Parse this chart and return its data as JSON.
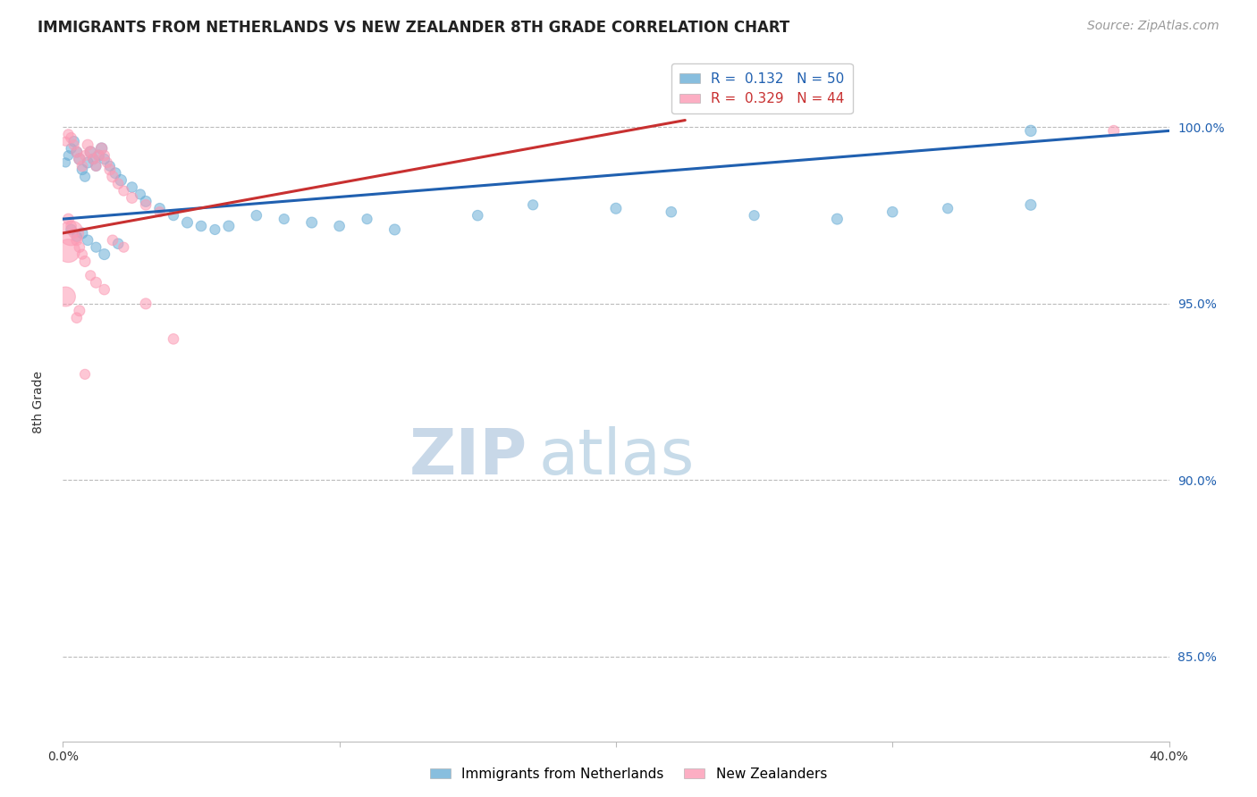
{
  "title": "IMMIGRANTS FROM NETHERLANDS VS NEW ZEALANDER 8TH GRADE CORRELATION CHART",
  "source": "Source: ZipAtlas.com",
  "ylabel": "8th Grade",
  "ytick_labels": [
    "85.0%",
    "90.0%",
    "95.0%",
    "100.0%"
  ],
  "ytick_values": [
    0.85,
    0.9,
    0.95,
    1.0
  ],
  "x_min": 0.0,
  "x_max": 0.4,
  "y_min": 0.826,
  "y_max": 1.018,
  "legend_blue_label": "R =  0.132   N = 50",
  "legend_pink_label": "R =  0.329   N = 44",
  "blue_color": "#6baed6",
  "pink_color": "#fc9ab4",
  "trend_blue_color": "#2060b0",
  "trend_pink_color": "#c83030",
  "watermark_zip": "ZIP",
  "watermark_atlas": "atlas",
  "blue_scatter_x": [
    0.001,
    0.002,
    0.003,
    0.004,
    0.005,
    0.006,
    0.007,
    0.008,
    0.009,
    0.01,
    0.011,
    0.012,
    0.013,
    0.014,
    0.015,
    0.017,
    0.019,
    0.021,
    0.025,
    0.028,
    0.03,
    0.035,
    0.04,
    0.045,
    0.05,
    0.055,
    0.06,
    0.07,
    0.08,
    0.09,
    0.1,
    0.11,
    0.12,
    0.15,
    0.17,
    0.2,
    0.22,
    0.25,
    0.28,
    0.3,
    0.32,
    0.35,
    0.003,
    0.005,
    0.007,
    0.009,
    0.012,
    0.015,
    0.02,
    0.35
  ],
  "blue_scatter_y": [
    0.99,
    0.992,
    0.994,
    0.996,
    0.993,
    0.991,
    0.988,
    0.986,
    0.99,
    0.993,
    0.991,
    0.989,
    0.992,
    0.994,
    0.991,
    0.989,
    0.987,
    0.985,
    0.983,
    0.981,
    0.979,
    0.977,
    0.975,
    0.973,
    0.972,
    0.971,
    0.972,
    0.975,
    0.974,
    0.973,
    0.972,
    0.974,
    0.971,
    0.975,
    0.978,
    0.977,
    0.976,
    0.975,
    0.974,
    0.976,
    0.977,
    0.978,
    0.971,
    0.969,
    0.97,
    0.968,
    0.966,
    0.964,
    0.967,
    0.999
  ],
  "blue_scatter_size": [
    55,
    60,
    65,
    70,
    75,
    80,
    70,
    65,
    75,
    80,
    70,
    65,
    75,
    80,
    70,
    65,
    75,
    80,
    70,
    65,
    75,
    70,
    65,
    75,
    70,
    65,
    75,
    70,
    65,
    75,
    70,
    65,
    75,
    70,
    65,
    75,
    70,
    65,
    75,
    70,
    65,
    75,
    70,
    65,
    75,
    70,
    65,
    75,
    70,
    80
  ],
  "pink_scatter_x": [
    0.001,
    0.002,
    0.003,
    0.004,
    0.005,
    0.006,
    0.007,
    0.008,
    0.009,
    0.01,
    0.011,
    0.012,
    0.013,
    0.014,
    0.015,
    0.016,
    0.017,
    0.018,
    0.02,
    0.022,
    0.025,
    0.03,
    0.035,
    0.002,
    0.003,
    0.004,
    0.005,
    0.006,
    0.007,
    0.008,
    0.001,
    0.002,
    0.003,
    0.018,
    0.022,
    0.03,
    0.04,
    0.01,
    0.012,
    0.015,
    0.008,
    0.006,
    0.005,
    0.38
  ],
  "pink_scatter_y": [
    0.996,
    0.998,
    0.997,
    0.995,
    0.993,
    0.991,
    0.989,
    0.992,
    0.995,
    0.993,
    0.991,
    0.989,
    0.992,
    0.994,
    0.992,
    0.99,
    0.988,
    0.986,
    0.984,
    0.982,
    0.98,
    0.978,
    0.976,
    0.974,
    0.972,
    0.97,
    0.968,
    0.966,
    0.964,
    0.962,
    0.952,
    0.965,
    0.97,
    0.968,
    0.966,
    0.95,
    0.94,
    0.958,
    0.956,
    0.954,
    0.93,
    0.948,
    0.946,
    0.999
  ],
  "pink_scatter_size": [
    55,
    65,
    70,
    65,
    75,
    80,
    70,
    65,
    75,
    80,
    70,
    65,
    75,
    80,
    70,
    65,
    75,
    80,
    70,
    65,
    75,
    70,
    65,
    75,
    70,
    65,
    75,
    70,
    65,
    75,
    250,
    350,
    400,
    70,
    65,
    75,
    70,
    65,
    75,
    70,
    65,
    75,
    70,
    75
  ],
  "blue_trend_x": [
    0.0,
    0.4
  ],
  "blue_trend_y": [
    0.974,
    0.999
  ],
  "pink_trend_x": [
    0.0,
    0.225
  ],
  "pink_trend_y": [
    0.97,
    1.002
  ],
  "grid_color": "#bbbbbb",
  "grid_style": "--",
  "background_color": "#ffffff",
  "title_fontsize": 12,
  "axis_label_fontsize": 10,
  "tick_fontsize": 10,
  "legend_fontsize": 11,
  "watermark_zip_fontsize": 52,
  "watermark_atlas_fontsize": 52,
  "watermark_zip_color": "#c8d8e8",
  "watermark_atlas_color": "#b0cce0",
  "source_fontsize": 10,
  "source_color": "#999999",
  "bottom_legend_labels": [
    "Immigrants from Netherlands",
    "New Zealanders"
  ]
}
